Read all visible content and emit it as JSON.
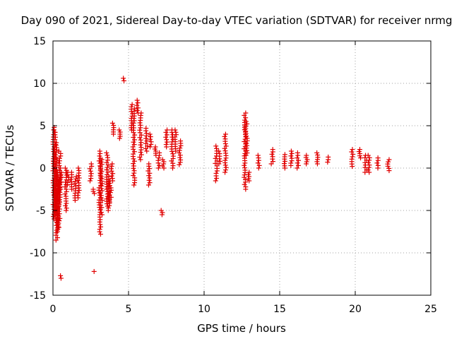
{
  "chart_data": {
    "type": "scatter",
    "title": "Day 090 of 2021, Sidereal Day-to-day VTEC variation (SDTVAR) for receiver nrmg",
    "xlabel": "GPS time / hours",
    "ylabel": "SDTVAR / TECUs",
    "xlim": [
      0,
      25
    ],
    "ylim": [
      -15,
      15
    ],
    "xticks": [
      "0",
      "5",
      "10",
      "15",
      "20",
      "25"
    ],
    "yticks": [
      "-15",
      "-10",
      "-5",
      "0",
      "5",
      "10",
      "15"
    ],
    "grid": true,
    "marker": "plus",
    "color": "#e00000",
    "clusters": [
      [
        0.05,
        -6.0,
        4.8
      ],
      [
        0.12,
        -5.5,
        4.5
      ],
      [
        0.2,
        -4.5,
        3.0
      ],
      [
        0.25,
        -8.5,
        -1.0
      ],
      [
        0.3,
        -7.5,
        -0.5
      ],
      [
        0.35,
        -7.0,
        -1.0
      ],
      [
        0.4,
        -6.5,
        -1.5
      ],
      [
        0.45,
        -4.0,
        2.0
      ],
      [
        0.5,
        -2.5,
        -0.5
      ],
      [
        0.5,
        -13.0,
        -12.7
      ],
      [
        0.85,
        -5.0,
        0.0
      ],
      [
        1.0,
        -2.0,
        -0.5
      ],
      [
        1.2,
        -2.5,
        -0.5
      ],
      [
        1.5,
        -3.8,
        -1.0
      ],
      [
        1.7,
        -3.5,
        0.0
      ],
      [
        2.5,
        -1.5,
        0.5
      ],
      [
        2.7,
        -3.0,
        -2.5
      ],
      [
        2.7,
        -12.2,
        -12.2
      ],
      [
        3.1,
        -7.8,
        2.0
      ],
      [
        3.2,
        -5.5,
        1.0
      ],
      [
        3.6,
        -4.5,
        1.8
      ],
      [
        3.7,
        -5.0,
        -1.0
      ],
      [
        3.8,
        -4.0,
        -1.5
      ],
      [
        3.9,
        -1.5,
        0.5
      ],
      [
        4.0,
        4.0,
        5.3
      ],
      [
        4.4,
        3.5,
        4.5
      ],
      [
        4.7,
        10.3,
        10.6
      ],
      [
        5.2,
        4.5,
        7.5
      ],
      [
        5.35,
        -2.0,
        7.0
      ],
      [
        5.6,
        6.5,
        8.0
      ],
      [
        5.8,
        1.0,
        6.5
      ],
      [
        6.2,
        2.0,
        4.7
      ],
      [
        6.35,
        -2.0,
        0.5
      ],
      [
        6.45,
        2.5,
        4.0
      ],
      [
        6.8,
        1.5,
        2.5
      ],
      [
        7.0,
        0.0,
        1.8
      ],
      [
        7.2,
        -5.5,
        -5.0
      ],
      [
        7.3,
        0.0,
        1.0
      ],
      [
        7.5,
        2.5,
        4.5
      ],
      [
        7.9,
        0.0,
        4.5
      ],
      [
        8.1,
        2.0,
        4.5
      ],
      [
        8.4,
        0.4,
        3.2
      ],
      [
        10.8,
        -1.5,
        2.6
      ],
      [
        11.0,
        0.5,
        2.0
      ],
      [
        11.4,
        -0.5,
        4.0
      ],
      [
        12.7,
        -2.5,
        6.5
      ],
      [
        12.8,
        1.5,
        5.5
      ],
      [
        12.95,
        -1.5,
        -0.5
      ],
      [
        13.6,
        0.0,
        1.5
      ],
      [
        14.5,
        0.5,
        2.2
      ],
      [
        15.3,
        0.0,
        1.6
      ],
      [
        15.8,
        0.3,
        2.0
      ],
      [
        16.2,
        0.0,
        1.8
      ],
      [
        16.8,
        0.5,
        1.5
      ],
      [
        17.5,
        0.5,
        1.8
      ],
      [
        18.2,
        0.7,
        1.3
      ],
      [
        19.8,
        0.2,
        2.2
      ],
      [
        20.3,
        1.2,
        2.2
      ],
      [
        20.7,
        -0.5,
        1.5
      ],
      [
        20.9,
        -0.5,
        1.5
      ],
      [
        21.5,
        0.0,
        1.2
      ],
      [
        22.2,
        -0.3,
        1.0
      ]
    ]
  }
}
